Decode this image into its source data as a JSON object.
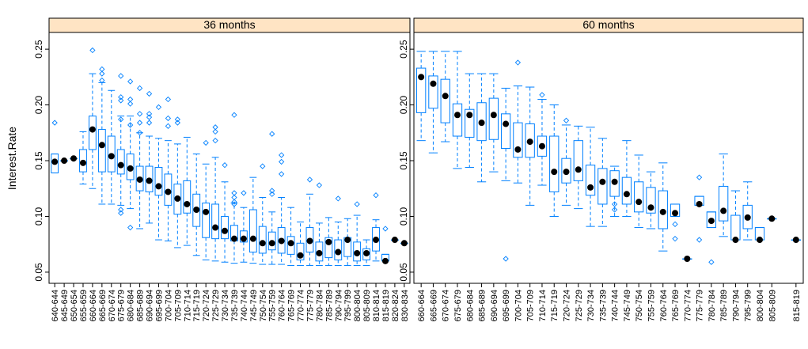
{
  "chart_data": {
    "type": "box",
    "ylabel": "Interest.Rate",
    "ylim": [
      0.04,
      0.265
    ],
    "yticks": [
      0.05,
      0.1,
      0.15,
      0.2,
      0.25
    ],
    "ytick_labels": [
      "0.05",
      "0.10",
      "0.15",
      "0.20",
      "0.25"
    ],
    "colors": {
      "box": "#0080ff",
      "median": "#000000",
      "strip": "#ffe4c4"
    },
    "panels": [
      {
        "title": "36 months",
        "categories": [
          "640-644",
          "645-649",
          "650-654",
          "655-659",
          "660-664",
          "665-669",
          "670-674",
          "675-679",
          "680-684",
          "685-689",
          "690-694",
          "695-699",
          "700-704",
          "705-709",
          "710-714",
          "715-719",
          "720-724",
          "725-729",
          "730-734",
          "735-739",
          "740-744",
          "745-749",
          "750-754",
          "755-759",
          "760-764",
          "765-769",
          "770-774",
          "775-779",
          "780-784",
          "785-789",
          "790-794",
          "795-799",
          "800-804",
          "805-809",
          "810-814",
          "815-819",
          "820-824",
          "830-834"
        ],
        "boxes": [
          {
            "min": 0.139,
            "q1": 0.139,
            "med": 0.149,
            "q3": 0.156,
            "max": 0.156,
            "out": [
              0.184
            ]
          },
          {
            "min": 0.15,
            "q1": 0.15,
            "med": 0.15,
            "q3": 0.15,
            "max": 0.15,
            "out": []
          },
          {
            "min": 0.152,
            "q1": 0.152,
            "med": 0.152,
            "q3": 0.152,
            "max": 0.152,
            "out": []
          },
          {
            "min": 0.129,
            "q1": 0.14,
            "med": 0.148,
            "q3": 0.16,
            "max": 0.176,
            "out": []
          },
          {
            "min": 0.125,
            "q1": 0.16,
            "med": 0.178,
            "q3": 0.19,
            "max": 0.228,
            "out": [
              0.249
            ]
          },
          {
            "min": 0.111,
            "q1": 0.14,
            "med": 0.164,
            "q3": 0.178,
            "max": 0.22,
            "out": [
              0.232,
              0.228,
              0.222
            ]
          },
          {
            "min": 0.111,
            "q1": 0.14,
            "med": 0.154,
            "q3": 0.172,
            "max": 0.213,
            "out": []
          },
          {
            "min": 0.11,
            "q1": 0.138,
            "med": 0.146,
            "q3": 0.16,
            "max": 0.19,
            "out": [
              0.226,
              0.207,
              0.204,
              0.187,
              0.106,
              0.103
            ]
          },
          {
            "min": 0.107,
            "q1": 0.133,
            "med": 0.143,
            "q3": 0.156,
            "max": 0.19,
            "out": [
              0.221,
              0.205,
              0.201,
              0.182,
              0.09
            ]
          },
          {
            "min": 0.089,
            "q1": 0.123,
            "med": 0.133,
            "q3": 0.145,
            "max": 0.175,
            "out": [
              0.215,
              0.192,
              0.184,
              0.175
            ]
          },
          {
            "min": 0.094,
            "q1": 0.122,
            "med": 0.132,
            "q3": 0.145,
            "max": 0.172,
            "out": [
              0.21,
              0.192,
              0.189,
              0.184
            ]
          },
          {
            "min": 0.079,
            "q1": 0.119,
            "med": 0.127,
            "q3": 0.144,
            "max": 0.17,
            "out": [
              0.198
            ]
          },
          {
            "min": 0.078,
            "q1": 0.11,
            "med": 0.122,
            "q3": 0.138,
            "max": 0.168,
            "out": [
              0.205,
              0.188,
              0.181
            ]
          },
          {
            "min": 0.072,
            "q1": 0.102,
            "med": 0.116,
            "q3": 0.129,
            "max": 0.165,
            "out": [
              0.187,
              0.184
            ]
          },
          {
            "min": 0.074,
            "q1": 0.103,
            "med": 0.111,
            "q3": 0.132,
            "max": 0.171,
            "out": []
          },
          {
            "min": 0.065,
            "q1": 0.091,
            "med": 0.106,
            "q3": 0.12,
            "max": 0.156,
            "out": []
          },
          {
            "min": 0.061,
            "q1": 0.081,
            "med": 0.104,
            "q3": 0.112,
            "max": 0.147,
            "out": [
              0.166
            ]
          },
          {
            "min": 0.06,
            "q1": 0.08,
            "med": 0.09,
            "q3": 0.111,
            "max": 0.153,
            "out": [
              0.18,
              0.176,
              0.168
            ]
          },
          {
            "min": 0.059,
            "q1": 0.08,
            "med": 0.087,
            "q3": 0.1,
            "max": 0.131,
            "out": [
              0.146
            ]
          },
          {
            "min": 0.058,
            "q1": 0.078,
            "med": 0.08,
            "q3": 0.092,
            "max": 0.112,
            "out": [
              0.191,
              0.121,
              0.117,
              0.113,
              0.111
            ]
          },
          {
            "min": 0.059,
            "q1": 0.077,
            "med": 0.08,
            "q3": 0.087,
            "max": 0.108,
            "out": [
              0.121
            ]
          },
          {
            "min": 0.058,
            "q1": 0.068,
            "med": 0.08,
            "q3": 0.106,
            "max": 0.135,
            "out": []
          },
          {
            "min": 0.057,
            "q1": 0.067,
            "med": 0.076,
            "q3": 0.091,
            "max": 0.117,
            "out": [
              0.145
            ]
          },
          {
            "min": 0.057,
            "q1": 0.07,
            "med": 0.076,
            "q3": 0.086,
            "max": 0.104,
            "out": [
              0.174,
              0.123,
              0.12
            ]
          },
          {
            "min": 0.057,
            "q1": 0.067,
            "med": 0.078,
            "q3": 0.09,
            "max": 0.117,
            "out": [
              0.155,
              0.149,
              0.138
            ]
          },
          {
            "min": 0.056,
            "q1": 0.066,
            "med": 0.076,
            "q3": 0.082,
            "max": 0.108,
            "out": []
          },
          {
            "min": 0.056,
            "q1": 0.061,
            "med": 0.065,
            "q3": 0.076,
            "max": 0.095,
            "out": []
          },
          {
            "min": 0.056,
            "q1": 0.068,
            "med": 0.078,
            "q3": 0.09,
            "max": 0.12,
            "out": [
              0.133
            ]
          },
          {
            "min": 0.056,
            "q1": 0.06,
            "med": 0.067,
            "q3": 0.077,
            "max": 0.094,
            "out": [
              0.128
            ]
          },
          {
            "min": 0.056,
            "q1": 0.063,
            "med": 0.077,
            "q3": 0.081,
            "max": 0.099,
            "out": []
          },
          {
            "min": 0.056,
            "q1": 0.061,
            "med": 0.068,
            "q3": 0.079,
            "max": 0.095,
            "out": [
              0.116
            ]
          },
          {
            "min": 0.056,
            "q1": 0.064,
            "med": 0.079,
            "q3": 0.081,
            "max": 0.098,
            "out": []
          },
          {
            "min": 0.056,
            "q1": 0.06,
            "med": 0.067,
            "q3": 0.077,
            "max": 0.101,
            "out": [
              0.111
            ]
          },
          {
            "min": 0.056,
            "q1": 0.061,
            "med": 0.067,
            "q3": 0.071,
            "max": 0.079,
            "out": []
          },
          {
            "min": 0.06,
            "q1": 0.069,
            "med": 0.079,
            "q3": 0.09,
            "max": 0.097,
            "out": [
              0.119
            ]
          },
          {
            "min": 0.06,
            "q1": 0.06,
            "med": 0.06,
            "q3": 0.066,
            "max": 0.066,
            "out": [
              0.089
            ]
          },
          {
            "min": 0.079,
            "q1": 0.079,
            "med": 0.079,
            "q3": 0.079,
            "max": 0.079,
            "out": []
          },
          {
            "min": 0.076,
            "q1": 0.076,
            "med": 0.076,
            "q3": 0.076,
            "max": 0.076,
            "out": []
          }
        ]
      },
      {
        "title": "60 months",
        "categories": [
          "660-664",
          "665-669",
          "670-674",
          "675-679",
          "680-684",
          "685-689",
          "690-694",
          "695-699",
          "700-704",
          "705-709",
          "710-714",
          "715-719",
          "720-724",
          "725-729",
          "730-734",
          "735-739",
          "740-744",
          "745-749",
          "750-754",
          "755-759",
          "760-764",
          "765-769",
          "770-774",
          "775-779",
          "780-784",
          "785-789",
          "790-794",
          "795-799",
          "800-804",
          "805-809",
          "815-819"
        ],
        "slots": [
          0,
          1,
          2,
          3,
          4,
          5,
          6,
          7,
          8,
          9,
          10,
          11,
          12,
          13,
          14,
          15,
          16,
          17,
          18,
          19,
          20,
          21,
          22,
          23,
          24,
          25,
          26,
          27,
          28,
          29,
          31
        ],
        "boxes": [
          {
            "min": 0.168,
            "q1": 0.193,
            "med": 0.225,
            "q3": 0.233,
            "max": 0.248,
            "out": []
          },
          {
            "min": 0.157,
            "q1": 0.197,
            "med": 0.219,
            "q3": 0.226,
            "max": 0.248,
            "out": []
          },
          {
            "min": 0.167,
            "q1": 0.184,
            "med": 0.208,
            "q3": 0.223,
            "max": 0.248,
            "out": []
          },
          {
            "min": 0.143,
            "q1": 0.172,
            "med": 0.191,
            "q3": 0.201,
            "max": 0.248,
            "out": []
          },
          {
            "min": 0.144,
            "q1": 0.171,
            "med": 0.191,
            "q3": 0.196,
            "max": 0.228,
            "out": []
          },
          {
            "min": 0.131,
            "q1": 0.168,
            "med": 0.184,
            "q3": 0.202,
            "max": 0.228,
            "out": []
          },
          {
            "min": 0.14,
            "q1": 0.169,
            "med": 0.191,
            "q3": 0.206,
            "max": 0.228,
            "out": []
          },
          {
            "min": 0.132,
            "q1": 0.161,
            "med": 0.183,
            "q3": 0.192,
            "max": 0.215,
            "out": [
              0.062
            ]
          },
          {
            "min": 0.13,
            "q1": 0.153,
            "med": 0.16,
            "q3": 0.184,
            "max": 0.217,
            "out": [
              0.238
            ]
          },
          {
            "min": 0.11,
            "q1": 0.153,
            "med": 0.167,
            "q3": 0.183,
            "max": 0.216,
            "out": []
          },
          {
            "min": 0.128,
            "q1": 0.154,
            "med": 0.163,
            "q3": 0.172,
            "max": 0.205,
            "out": [
              0.209
            ]
          },
          {
            "min": 0.1,
            "q1": 0.122,
            "med": 0.14,
            "q3": 0.172,
            "max": 0.2,
            "out": []
          },
          {
            "min": 0.11,
            "q1": 0.13,
            "med": 0.14,
            "q3": 0.152,
            "max": 0.182,
            "out": [
              0.186
            ]
          },
          {
            "min": 0.107,
            "q1": 0.132,
            "med": 0.142,
            "q3": 0.168,
            "max": 0.181,
            "out": []
          },
          {
            "min": 0.091,
            "q1": 0.119,
            "med": 0.126,
            "q3": 0.146,
            "max": 0.18,
            "out": []
          },
          {
            "min": 0.091,
            "q1": 0.111,
            "med": 0.131,
            "q3": 0.143,
            "max": 0.17,
            "out": []
          },
          {
            "min": 0.1,
            "q1": 0.118,
            "med": 0.131,
            "q3": 0.141,
            "max": 0.145,
            "out": [
              0.111,
              0.106
            ]
          },
          {
            "min": 0.1,
            "q1": 0.111,
            "med": 0.12,
            "q3": 0.135,
            "max": 0.168,
            "out": []
          },
          {
            "min": 0.09,
            "q1": 0.104,
            "med": 0.113,
            "q3": 0.131,
            "max": 0.155,
            "out": []
          },
          {
            "min": 0.089,
            "q1": 0.103,
            "med": 0.108,
            "q3": 0.126,
            "max": 0.14,
            "out": []
          },
          {
            "min": 0.069,
            "q1": 0.089,
            "med": 0.104,
            "q3": 0.123,
            "max": 0.148,
            "out": []
          },
          {
            "min": 0.1,
            "q1": 0.1,
            "med": 0.103,
            "q3": 0.111,
            "max": 0.111,
            "out": [
              0.08,
              0.093
            ]
          },
          {
            "min": 0.062,
            "q1": 0.062,
            "med": 0.062,
            "q3": 0.062,
            "max": 0.062,
            "out": []
          },
          {
            "min": 0.11,
            "q1": 0.11,
            "med": 0.111,
            "q3": 0.118,
            "max": 0.118,
            "out": [
              0.135,
              0.079
            ]
          },
          {
            "min": 0.09,
            "q1": 0.09,
            "med": 0.096,
            "q3": 0.104,
            "max": 0.104,
            "out": [
              0.059
            ]
          },
          {
            "min": 0.082,
            "q1": 0.096,
            "med": 0.105,
            "q3": 0.127,
            "max": 0.156,
            "out": []
          },
          {
            "min": 0.079,
            "q1": 0.079,
            "med": 0.079,
            "q3": 0.101,
            "max": 0.123,
            "out": []
          },
          {
            "min": 0.079,
            "q1": 0.089,
            "med": 0.099,
            "q3": 0.11,
            "max": 0.131,
            "out": []
          },
          {
            "min": 0.079,
            "q1": 0.079,
            "med": 0.079,
            "q3": 0.09,
            "max": 0.09,
            "out": []
          },
          {
            "min": 0.098,
            "q1": 0.098,
            "med": 0.098,
            "q3": 0.098,
            "max": 0.098,
            "out": []
          },
          {
            "min": 0.079,
            "q1": 0.079,
            "med": 0.079,
            "q3": 0.079,
            "max": 0.079,
            "out": []
          }
        ]
      }
    ]
  }
}
